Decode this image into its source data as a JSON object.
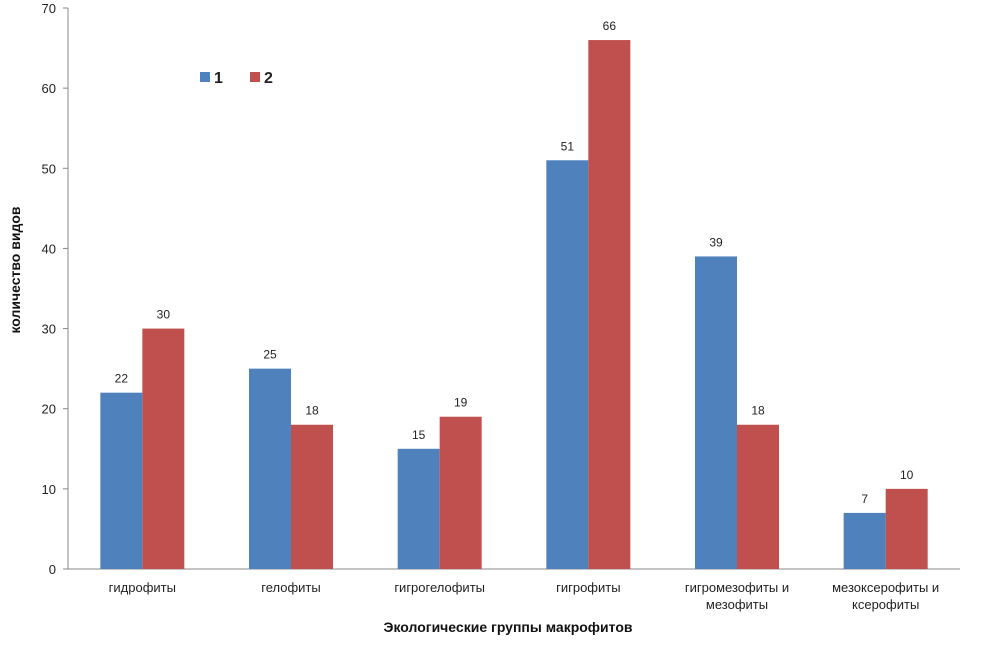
{
  "chart_data": {
    "type": "bar",
    "title": "",
    "xlabel": "Экологические группы макрофитов",
    "ylabel": "количество видов",
    "ylim": [
      0,
      70
    ],
    "yticks": [
      0,
      10,
      20,
      30,
      40,
      50,
      60,
      70
    ],
    "grid": false,
    "legend": "top-left",
    "categories": [
      [
        "гидрофиты"
      ],
      [
        "гелофиты"
      ],
      [
        "гигрогелофиты"
      ],
      [
        "гигрофиты"
      ],
      [
        "гигромезофиты и",
        "мезофиты"
      ],
      [
        "мезоксерофиты и",
        "ксерофиты"
      ]
    ],
    "series": [
      {
        "name": "1",
        "color": "#4f81bd",
        "values": [
          22,
          25,
          15,
          51,
          39,
          7
        ]
      },
      {
        "name": "2",
        "color": "#c0504d",
        "values": [
          30,
          18,
          19,
          66,
          18,
          10
        ]
      }
    ]
  }
}
